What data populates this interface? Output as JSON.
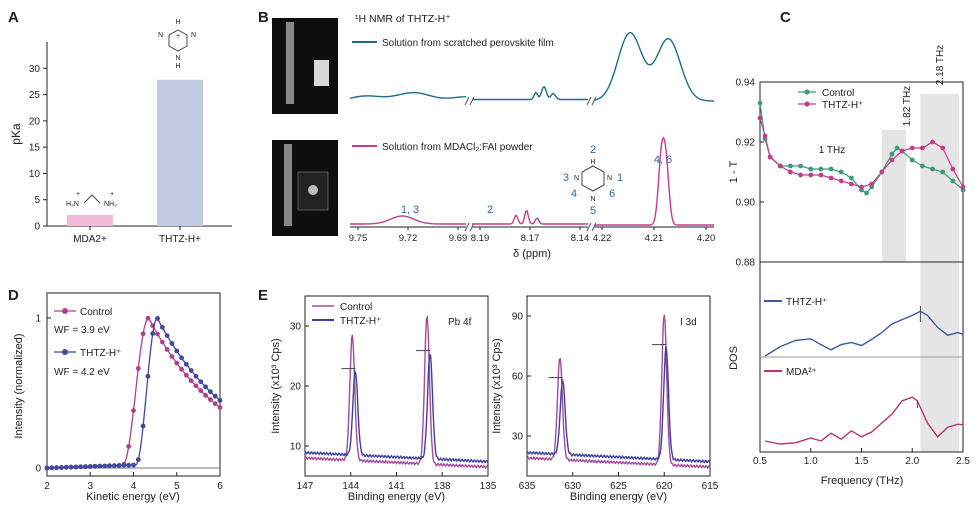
{
  "colors": {
    "pink": "#c23d8c",
    "pinkLight": "#e38fc3",
    "blue": "#3e5a9e",
    "teal": "#1f6d8a",
    "gray": "#e5e5e5",
    "barA": "#f2bbd8",
    "barB": "#c3cbe4",
    "label": "#2b6ea8"
  },
  "panels": {
    "A": "A",
    "B": "B",
    "C": "C",
    "D": "D",
    "E": "E"
  },
  "chart_data": [
    {
      "id": "A",
      "type": "bar",
      "categories": [
        "MDA2+",
        "THTZ-H+"
      ],
      "values": [
        2.1,
        27.8
      ],
      "ylabel": "pKa",
      "ylim": [
        0,
        35
      ],
      "yticks": [
        0,
        5,
        10,
        15,
        20,
        25,
        30
      ],
      "struct_labels": {
        "ring": [
          "H",
          "N",
          "H",
          "N",
          "N",
          "H"
        ],
        "mda": [
          "H₃N",
          "NH₃",
          "+",
          "+"
        ]
      },
      "plus": "+"
    },
    {
      "id": "B",
      "type": "line",
      "title": "¹H NMR of THTZ-H⁺",
      "xlabel": "δ (ppm)",
      "series": [
        {
          "name": "Solution from scratched perovskite film"
        },
        {
          "name": "Solution from MDACl₂:FAI powder"
        }
      ],
      "segment_ticks": [
        [
          "9.75",
          "9.72",
          "9.69"
        ],
        [
          "8.19",
          "8.17",
          "8.14"
        ],
        [
          "4.22",
          "4.21",
          "4.20"
        ]
      ],
      "peak_labels": [
        "1, 3",
        "2",
        "4, 6"
      ],
      "struct_numbers": [
        "2",
        "3",
        "1",
        "4",
        "6",
        "5"
      ],
      "struct_atoms": [
        "H",
        "N",
        "N",
        "N",
        "H",
        "H",
        "H"
      ]
    },
    {
      "id": "C",
      "type": "line",
      "ylabel_top": "1 - T",
      "ylabel_bottom": "DOS",
      "xlabel": "Frequency (THz)",
      "xticks": [
        "0.5",
        "1.0",
        "1.5",
        "2.0",
        "2.5"
      ],
      "yticks": [
        "0.88",
        "0.90",
        "0.92",
        "0.94"
      ],
      "series": [
        {
          "name": "Control"
        },
        {
          "name": "THTZ-H⁺"
        }
      ],
      "annotations": [
        "1 THz",
        "1.82 THz",
        "2.18 THz"
      ],
      "dos_labels": [
        "THTZ-H⁺",
        "MDA²⁺"
      ],
      "control": [
        [
          0.5,
          0.933
        ],
        [
          0.55,
          0.921
        ],
        [
          0.6,
          0.915
        ],
        [
          0.7,
          0.912
        ],
        [
          0.8,
          0.912
        ],
        [
          0.9,
          0.912
        ],
        [
          1.0,
          0.911
        ],
        [
          1.1,
          0.911
        ],
        [
          1.2,
          0.911
        ],
        [
          1.3,
          0.91
        ],
        [
          1.4,
          0.908
        ],
        [
          1.5,
          0.904
        ],
        [
          1.55,
          0.903
        ],
        [
          1.6,
          0.905
        ],
        [
          1.7,
          0.91
        ],
        [
          1.8,
          0.916
        ],
        [
          1.85,
          0.918
        ],
        [
          1.9,
          0.917
        ],
        [
          2.0,
          0.914
        ],
        [
          2.1,
          0.912
        ],
        [
          2.2,
          0.911
        ],
        [
          2.3,
          0.91
        ],
        [
          2.4,
          0.907
        ],
        [
          2.5,
          0.904
        ]
      ],
      "thtz": [
        [
          0.5,
          0.928
        ],
        [
          0.55,
          0.922
        ],
        [
          0.6,
          0.915
        ],
        [
          0.7,
          0.912
        ],
        [
          0.8,
          0.91
        ],
        [
          0.9,
          0.909
        ],
        [
          1.0,
          0.909
        ],
        [
          1.1,
          0.909
        ],
        [
          1.2,
          0.908
        ],
        [
          1.3,
          0.907
        ],
        [
          1.4,
          0.906
        ],
        [
          1.5,
          0.905
        ],
        [
          1.6,
          0.906
        ],
        [
          1.7,
          0.91
        ],
        [
          1.8,
          0.914
        ],
        [
          1.9,
          0.917
        ],
        [
          2.0,
          0.918
        ],
        [
          2.1,
          0.918
        ],
        [
          2.2,
          0.92
        ],
        [
          2.3,
          0.918
        ],
        [
          2.4,
          0.911
        ],
        [
          2.5,
          0.905
        ]
      ],
      "dos_thtz": [
        [
          0.55,
          0.0
        ],
        [
          0.7,
          0.18
        ],
        [
          0.85,
          0.3
        ],
        [
          1.0,
          0.33
        ],
        [
          1.1,
          0.22
        ],
        [
          1.2,
          0.12
        ],
        [
          1.3,
          0.22
        ],
        [
          1.4,
          0.26
        ],
        [
          1.5,
          0.2
        ],
        [
          1.6,
          0.32
        ],
        [
          1.7,
          0.45
        ],
        [
          1.8,
          0.62
        ],
        [
          1.9,
          0.7
        ],
        [
          2.0,
          0.78
        ],
        [
          2.08,
          0.86
        ],
        [
          2.15,
          0.78
        ],
        [
          2.25,
          0.55
        ],
        [
          2.35,
          0.4
        ],
        [
          2.45,
          0.45
        ],
        [
          2.5,
          0.42
        ]
      ],
      "dos_mda": [
        [
          0.55,
          0.05
        ],
        [
          0.7,
          0.0
        ],
        [
          0.85,
          0.02
        ],
        [
          1.0,
          0.1
        ],
        [
          1.1,
          0.05
        ],
        [
          1.2,
          0.18
        ],
        [
          1.3,
          0.08
        ],
        [
          1.4,
          0.22
        ],
        [
          1.5,
          0.12
        ],
        [
          1.6,
          0.2
        ],
        [
          1.7,
          0.35
        ],
        [
          1.8,
          0.5
        ],
        [
          1.9,
          0.72
        ],
        [
          2.0,
          0.78
        ],
        [
          2.05,
          0.72
        ],
        [
          2.15,
          0.35
        ],
        [
          2.25,
          0.12
        ],
        [
          2.35,
          0.28
        ],
        [
          2.45,
          0.33
        ],
        [
          2.5,
          0.32
        ]
      ]
    },
    {
      "id": "D",
      "type": "line",
      "xlabel": "Kinetic energy (eV)",
      "ylabel": "Intensity (normalized)",
      "xlim": [
        2,
        6
      ],
      "ylim": [
        0,
        1
      ],
      "xticks": [
        "2",
        "3",
        "4",
        "5",
        "6"
      ],
      "yticks": [
        "0",
        "1"
      ],
      "series": [
        {
          "name": "Control",
          "wf": "WF = 3.9 eV",
          "onset": 3.9,
          "peak": 4.35
        },
        {
          "name": "THTZ-H⁺",
          "wf": "WF = 4.2 eV",
          "onset": 4.2,
          "peak": 4.55
        }
      ]
    },
    {
      "id": "E1",
      "type": "line",
      "title": "Pb 4f",
      "xlabel": "Binding energy (eV)",
      "ylabel": "Intensity (x10³ Cps)",
      "xlim": [
        147,
        135
      ],
      "ylim": [
        5,
        35
      ],
      "xticks": [
        "147",
        "144",
        "141",
        "138",
        "135"
      ],
      "yticks": [
        "10",
        "20",
        "30"
      ],
      "series": [
        {
          "name": "Control",
          "peaks": [
            [
              143.9,
              28.5
            ],
            [
              139.0,
              31.8
            ]
          ]
        },
        {
          "name": "THTZ-H⁺",
          "peaks": [
            [
              143.7,
              22.5
            ],
            [
              138.8,
              25.5
            ]
          ]
        }
      ]
    },
    {
      "id": "E2",
      "type": "line",
      "title": "I 3d",
      "xlabel": "Binding energy (eV)",
      "ylabel": "Intensity (x10³ Cps)",
      "xlim": [
        635,
        615
      ],
      "ylim": [
        10,
        100
      ],
      "xticks": [
        "635",
        "630",
        "625",
        "620",
        "615"
      ],
      "yticks": [
        "30",
        "60",
        "90"
      ],
      "series": [
        {
          "name": "Control",
          "peaks": [
            [
              631.4,
              69.5
            ],
            [
              620.0,
              91.0
            ]
          ]
        },
        {
          "name": "THTZ-H⁺",
          "peaks": [
            [
              631.1,
              58.0
            ],
            [
              619.8,
              74.5
            ]
          ]
        }
      ]
    }
  ]
}
